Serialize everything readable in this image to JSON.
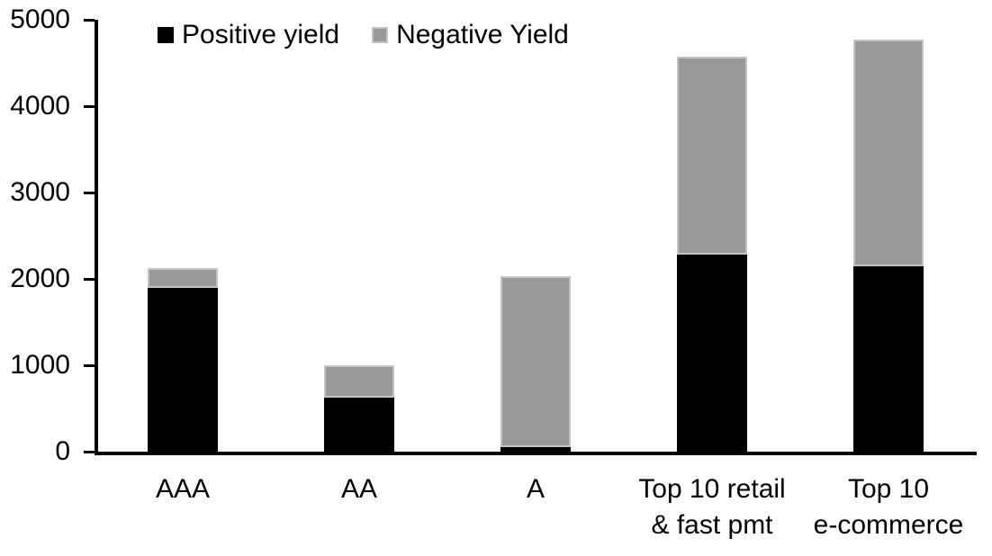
{
  "chart_data": {
    "type": "bar",
    "stacked": true,
    "categories": [
      "AAA",
      "AA",
      "A",
      "Top 10 retail & fast pmt",
      "Top 10 e-commerce"
    ],
    "category_label_lines": [
      [
        "AAA"
      ],
      [
        "AA"
      ],
      [
        "A"
      ],
      [
        "Top 10 retail",
        "& fast pmt"
      ],
      [
        "Top 10",
        "e-commerce"
      ]
    ],
    "series": [
      {
        "name": "Positive yield",
        "color": "#000000",
        "values": [
          1900,
          620,
          50,
          2280,
          2150
        ]
      },
      {
        "name": "Negative Yield",
        "color": "#999999",
        "border_color": "#c3c3c3",
        "values": [
          220,
          380,
          1980,
          2290,
          2620
        ]
      }
    ],
    "ylim": [
      0,
      5000
    ],
    "yticks": [
      0,
      1000,
      2000,
      3000,
      4000,
      5000
    ],
    "grid": false,
    "legend_position": "top-left-inside",
    "axis_color": "#000000",
    "text_color": "#000000",
    "background": "#ffffff"
  }
}
